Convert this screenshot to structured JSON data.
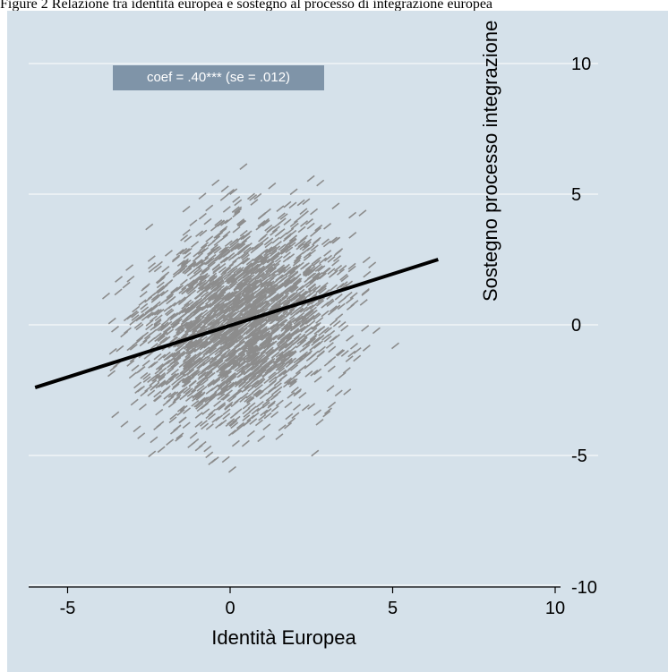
{
  "header": {
    "text": "Figure 2 Relazione tra identità europea e sostegno al processo di integrazione europea"
  },
  "chart_data": {
    "type": "scatter",
    "title": "",
    "xlabel": "Identità Europea",
    "ylabel": "Sostegno processo integrazione",
    "xlim": [
      -6.2,
      10
    ],
    "ylim": [
      -10.2,
      12
    ],
    "x_ticks": [
      -5,
      0,
      5,
      10
    ],
    "y_ticks": [
      -10,
      -5,
      0,
      5,
      10
    ],
    "grid": true,
    "annotation": "coef = .40*** (se = .012)",
    "fit_line": {
      "x": [
        -6.0,
        6.4
      ],
      "y": [
        -2.4,
        2.5
      ],
      "slope": 0.4
    },
    "scatter_description": "dense cloud of short grey dash markers, x roughly -6 to 6.5, y roughly -7.5 to 6.5, centred near (0.5, 0)",
    "colors": {
      "background": "#d5e1ea",
      "marker": "#8c8c8c",
      "fit_line": "#000000",
      "grid": "#ffffff",
      "annotation_bg": "#7f94a8"
    }
  }
}
